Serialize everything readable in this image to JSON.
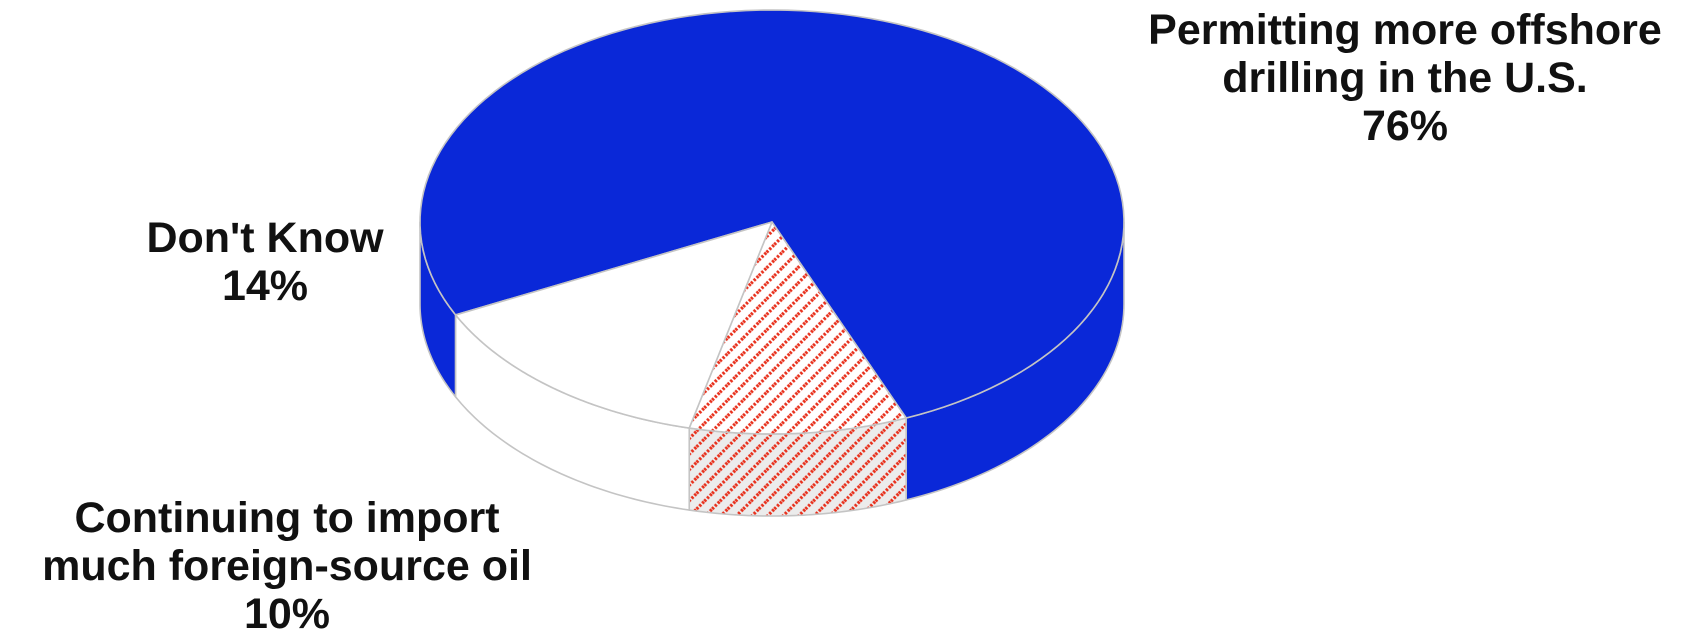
{
  "chart_data": {
    "type": "pie",
    "style": "3d",
    "slices": [
      {
        "label_line1": "Permitting more offshore",
        "label_line2": "drilling in the U.S.",
        "value_label": "76%",
        "value": 76,
        "color": "#0A28D8",
        "pattern": "solid"
      },
      {
        "label_line1": "Continuing to import",
        "label_line2": "much foreign-source oil",
        "value_label": "10%",
        "value": 10,
        "color": "#E8301C",
        "pattern": "diagonal-hatch"
      },
      {
        "label_line1": "Don't Know",
        "label_line2": "",
        "value_label": "14%",
        "value": 14,
        "color": "#FFFFFF",
        "pattern": "solid"
      }
    ]
  }
}
